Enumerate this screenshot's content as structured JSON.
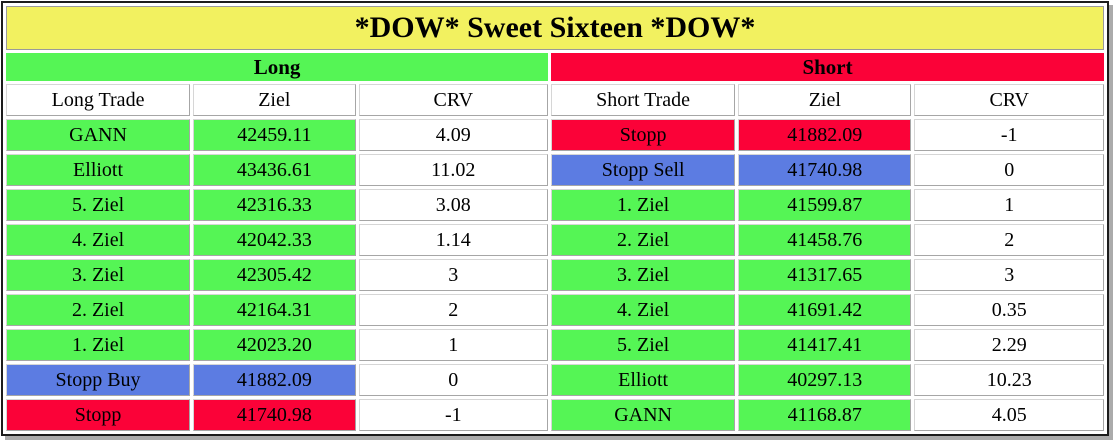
{
  "title": "*DOW* Sweet Sixteen *DOW*",
  "colors": {
    "title_bg": "#F2F160",
    "green": "#55F555",
    "red": "#FB0238",
    "blue": "#5C7CE2",
    "white": "#FFFFFF"
  },
  "sections": {
    "long": {
      "label": "Long",
      "style": "green"
    },
    "short": {
      "label": "Short",
      "style": "red"
    }
  },
  "headers": {
    "long_trade": "Long Trade",
    "long_ziel": "Ziel",
    "long_crv": "CRV",
    "short_trade": "Short Trade",
    "short_ziel": "Ziel",
    "short_crv": "CRV"
  },
  "rows": [
    {
      "long": {
        "label": "GANN",
        "ziel": "42459.11",
        "crv": "4.09",
        "style": "green"
      },
      "short": {
        "label": "Stopp",
        "ziel": "41882.09",
        "crv": "-1",
        "style": "red"
      }
    },
    {
      "long": {
        "label": "Elliott",
        "ziel": "43436.61",
        "crv": "11.02",
        "style": "green"
      },
      "short": {
        "label": "Stopp Sell",
        "ziel": "41740.98",
        "crv": "0",
        "style": "blue"
      }
    },
    {
      "long": {
        "label": "5. Ziel",
        "ziel": "42316.33",
        "crv": "3.08",
        "style": "green"
      },
      "short": {
        "label": "1. Ziel",
        "ziel": "41599.87",
        "crv": "1",
        "style": "green"
      }
    },
    {
      "long": {
        "label": "4. Ziel",
        "ziel": "42042.33",
        "crv": "1.14",
        "style": "green"
      },
      "short": {
        "label": "2. Ziel",
        "ziel": "41458.76",
        "crv": "2",
        "style": "green"
      }
    },
    {
      "long": {
        "label": "3. Ziel",
        "ziel": "42305.42",
        "crv": "3",
        "style": "green"
      },
      "short": {
        "label": "3. Ziel",
        "ziel": "41317.65",
        "crv": "3",
        "style": "green"
      }
    },
    {
      "long": {
        "label": "2. Ziel",
        "ziel": "42164.31",
        "crv": "2",
        "style": "green"
      },
      "short": {
        "label": "4. Ziel",
        "ziel": "41691.42",
        "crv": "0.35",
        "style": "green"
      }
    },
    {
      "long": {
        "label": "1. Ziel",
        "ziel": "42023.20",
        "crv": "1",
        "style": "green"
      },
      "short": {
        "label": "5. Ziel",
        "ziel": "41417.41",
        "crv": "2.29",
        "style": "green"
      }
    },
    {
      "long": {
        "label": "Stopp Buy",
        "ziel": "41882.09",
        "crv": "0",
        "style": "blue"
      },
      "short": {
        "label": "Elliott",
        "ziel": "40297.13",
        "crv": "10.23",
        "style": "green"
      }
    },
    {
      "long": {
        "label": "Stopp",
        "ziel": "41740.98",
        "crv": "-1",
        "style": "red"
      },
      "short": {
        "label": "GANN",
        "ziel": "41168.87",
        "crv": "4.05",
        "style": "green"
      }
    }
  ]
}
